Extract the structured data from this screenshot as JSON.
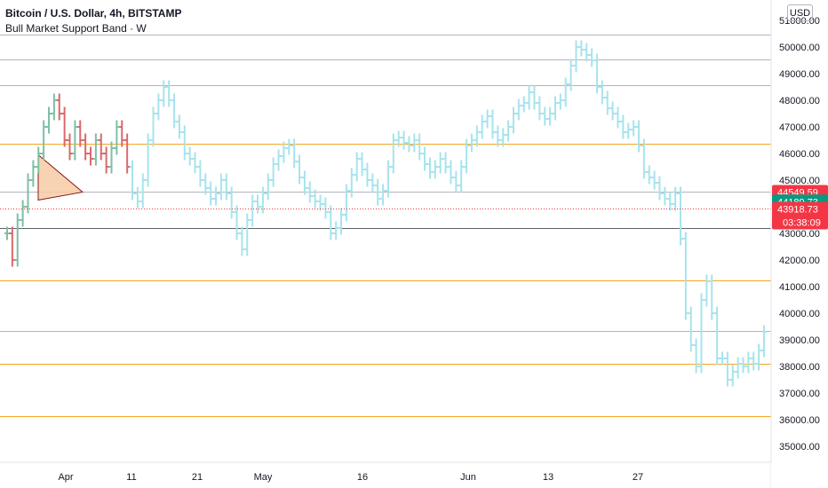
{
  "header": {
    "symbol_line": "Bitcoin / U.S. Dollar, 4h, BITSTAMP",
    "indicator_line": "Bull Market Support Band · W"
  },
  "currency_button": "USD",
  "colors": {
    "bar_main": "#a8e3ec",
    "bar_up": "#7fbfa6",
    "bar_down": "#d96a6a",
    "level_orange": "#f5a623",
    "level_gray": "#b2b5be",
    "level_dark": "#5d606b",
    "triangle_fill": "#f7cba4",
    "triangle_line": "#8b1a1a",
    "price_red": "#f23645",
    "price_green": "#089981"
  },
  "chart_data": {
    "type": "ohlc",
    "x_labels": [
      "Apr",
      "11",
      "21",
      "May",
      "16",
      "Jun",
      "13",
      "27"
    ],
    "y_ticks": [
      "51000.00",
      "50000.00",
      "49000.00",
      "48000.00",
      "47000.00",
      "46000.00",
      "45000.00",
      "44000.00",
      "43000.00",
      "42000.00",
      "41000.00",
      "40000.00",
      "39000.00",
      "38000.00",
      "37000.00",
      "36000.00",
      "35000.00"
    ],
    "ylim": [
      34500,
      51500
    ],
    "price_labels": [
      {
        "value": 44549.59,
        "text": "44549.59",
        "color": "red"
      },
      {
        "value": 44189.73,
        "text": "44189.73",
        "color": "green"
      },
      {
        "value": 43918.73,
        "text": "43918.73",
        "color": "red",
        "countdown": "03:38:09"
      }
    ],
    "horizontal_levels": [
      {
        "price": 50470,
        "style": "gray"
      },
      {
        "price": 49540,
        "style": "gray"
      },
      {
        "price": 48570,
        "style": "gray"
      },
      {
        "price": 46360,
        "style": "orange"
      },
      {
        "price": 44560,
        "style": "gray"
      },
      {
        "price": 43190,
        "style": "dark"
      },
      {
        "price": 41230,
        "style": "orange"
      },
      {
        "price": 39340,
        "style": "gray"
      },
      {
        "price": 38100,
        "style": "orange"
      },
      {
        "price": 36120,
        "style": "orange"
      }
    ],
    "series": [
      {
        "values": [
          43000,
          42000,
          43500,
          44000,
          45000,
          45500,
          46000,
          47000,
          47500,
          48000,
          47500,
          46500,
          46000,
          47000,
          46500,
          46000,
          45800,
          46500,
          46000,
          45500,
          46200,
          47000,
          46500,
          45500,
          44500,
          44200,
          45000,
          46500,
          47500,
          48000,
          48500,
          48000,
          47200,
          46800,
          46000,
          45800,
          45500,
          45000,
          44700,
          44300,
          44500,
          45000,
          44500,
          43800,
          43000,
          42400,
          43500,
          44200,
          44000,
          44500,
          45000,
          45600,
          45900,
          46200,
          46300,
          45700,
          45100,
          44700,
          44400,
          44200,
          44100,
          43800,
          43000,
          43200,
          43700,
          44600,
          45200,
          45800,
          45400,
          45000,
          44800,
          44300,
          44600,
          45500,
          46500,
          46600,
          46400,
          46300,
          46500,
          46000,
          45600,
          45300,
          45500,
          45800,
          45500,
          45100,
          44800,
          45500,
          46300,
          46500,
          46800,
          47200,
          47400,
          46800,
          46500,
          46700,
          47000,
          47500,
          47800,
          47900,
          48300,
          47900,
          47500,
          47300,
          47500,
          47900,
          48000,
          48600,
          49300,
          50000,
          49900,
          49700,
          49500,
          48500,
          48100,
          47700,
          47500,
          47200,
          46800,
          46900,
          47000,
          46300,
          45300,
          45100,
          44900,
          44500,
          44300,
          44100,
          44500,
          42800,
          40000,
          38800,
          38000,
          40500,
          41200,
          40000,
          38300,
          38300,
          37500,
          37800,
          38100,
          38000,
          38300,
          38100,
          38600,
          39300
        ]
      }
    ]
  }
}
